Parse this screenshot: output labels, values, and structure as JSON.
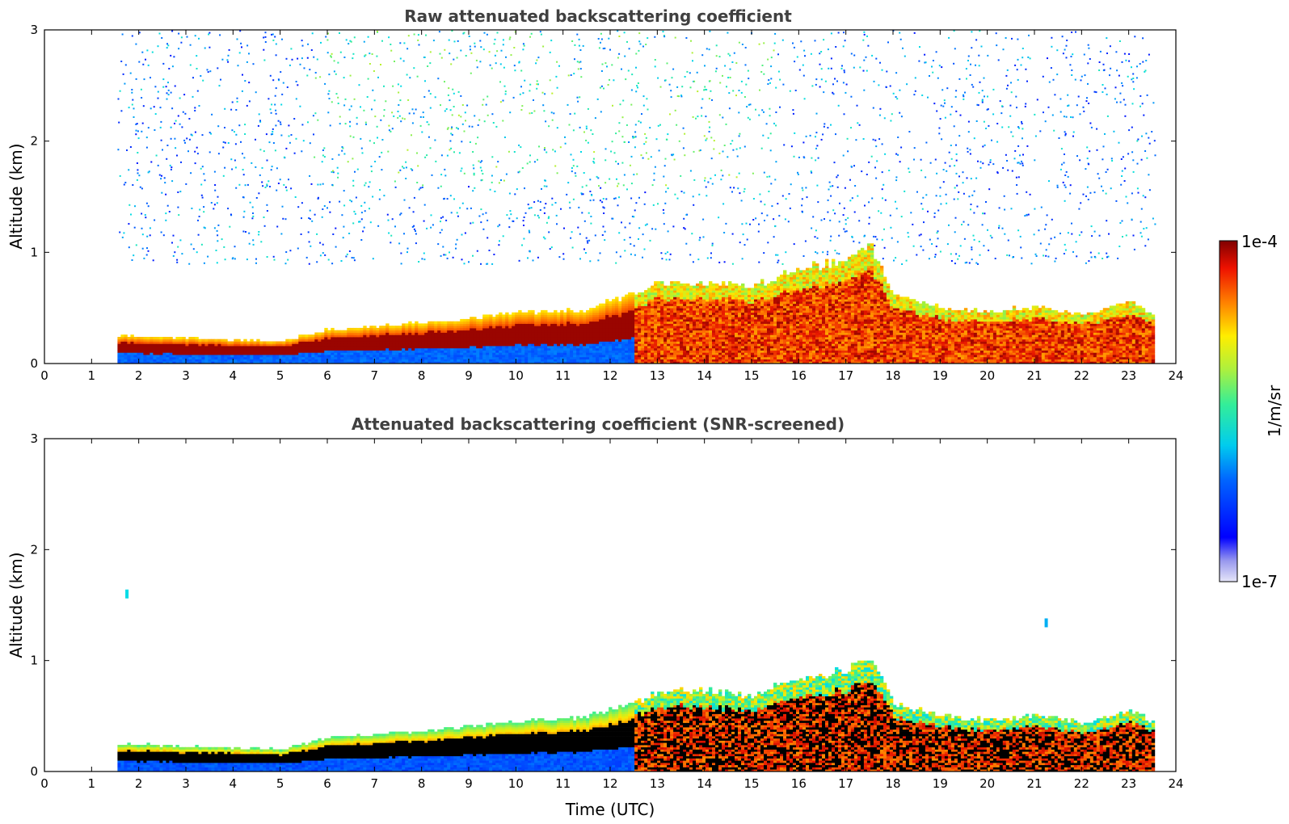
{
  "chart_data": [
    {
      "type": "heatmap",
      "title": "Raw attenuated backscattering coefficient",
      "xlabel": "",
      "ylabel": "Altitude (km)",
      "xlim": [
        0,
        24
      ],
      "ylim": [
        0,
        3
      ],
      "x_ticks": [
        "0",
        "1",
        "2",
        "3",
        "4",
        "5",
        "6",
        "7",
        "8",
        "9",
        "10",
        "11",
        "12",
        "13",
        "14",
        "15",
        "16",
        "17",
        "18",
        "19",
        "20",
        "21",
        "22",
        "23",
        "24"
      ],
      "y_ticks": [
        "0",
        "1",
        "2",
        "3"
      ],
      "data_extent_hours": [
        1.55,
        23.55
      ],
      "layer_top_km": [
        {
          "t": 1.55,
          "top": 0.24
        },
        {
          "t": 3,
          "top": 0.22
        },
        {
          "t": 5,
          "top": 0.19
        },
        {
          "t": 6,
          "top": 0.3
        },
        {
          "t": 8,
          "top": 0.36
        },
        {
          "t": 10,
          "top": 0.44
        },
        {
          "t": 11.5,
          "top": 0.48
        },
        {
          "t": 12.5,
          "top": 0.62
        },
        {
          "t": 13,
          "top": 0.72
        },
        {
          "t": 14,
          "top": 0.72
        },
        {
          "t": 15,
          "top": 0.68
        },
        {
          "t": 16,
          "top": 0.85
        },
        {
          "t": 17,
          "top": 0.9
        },
        {
          "t": 17.5,
          "top": 1.05
        },
        {
          "t": 18,
          "top": 0.6
        },
        {
          "t": 19,
          "top": 0.5
        },
        {
          "t": 20,
          "top": 0.45
        },
        {
          "t": 21,
          "top": 0.5
        },
        {
          "t": 22,
          "top": 0.42
        },
        {
          "t": 23,
          "top": 0.55
        },
        {
          "t": 23.55,
          "top": 0.42
        }
      ],
      "noise_region_km": [
        0.9,
        3.0
      ]
    },
    {
      "type": "heatmap",
      "title": "Attenuated backscattering coefficient (SNR-screened)",
      "xlabel": "Time (UTC)",
      "ylabel": "Altitude (km)",
      "xlim": [
        0,
        24
      ],
      "ylim": [
        0,
        3
      ],
      "x_ticks": [
        "0",
        "1",
        "2",
        "3",
        "4",
        "5",
        "6",
        "7",
        "8",
        "9",
        "10",
        "11",
        "12",
        "13",
        "14",
        "15",
        "16",
        "17",
        "18",
        "19",
        "20",
        "21",
        "22",
        "23",
        "24"
      ],
      "y_ticks": [
        "0",
        "1",
        "2",
        "3"
      ],
      "data_extent_hours": [
        1.55,
        23.55
      ],
      "isolated_features": [
        {
          "t": 1.75,
          "alt_km": 1.56,
          "level": 0.45
        },
        {
          "t": 21.25,
          "alt_km": 1.3,
          "level": 0.4
        }
      ]
    }
  ],
  "colorbar": {
    "label": "1/m/sr",
    "max_label": "1e-4",
    "min_label": "1e-7",
    "scale": "log",
    "colormap": "jet"
  },
  "colors": {
    "title_text": "#404040",
    "saturated_screened": "#000000"
  }
}
